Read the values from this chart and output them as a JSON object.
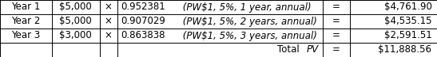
{
  "rows": [
    {
      "year": "Year 1",
      "cashflow": "$5,000",
      "factor_num": "0.952381",
      "factor_label": " (PW$1, 5%, 1 year, annual)",
      "eq": "=",
      "pv": "$4,761.90"
    },
    {
      "year": "Year 2",
      "cashflow": "$5,000",
      "factor_num": "0.907029",
      "factor_label": " (PW$1, 5%, 2 years, annual)",
      "eq": "=",
      "pv": "$4,535.15"
    },
    {
      "year": "Year 3",
      "cashflow": "$3,000",
      "factor_num": "0.863838",
      "factor_label": " (PW$1, 5%, 3 years, annual)",
      "eq": "=",
      "pv": "$2,591.51"
    }
  ],
  "total_pv": "$11,888.56",
  "eq_sign": "=",
  "times_sign": "×",
  "bg_color": "#ffffff",
  "border_color": "#000000",
  "text_color": "#000000",
  "figsize": [
    5.47,
    0.72
  ],
  "dpi": 100,
  "fontsize": 8.5,
  "col_bounds": [
    0.0,
    0.118,
    0.228,
    0.268,
    0.738,
    0.8,
    1.0
  ]
}
